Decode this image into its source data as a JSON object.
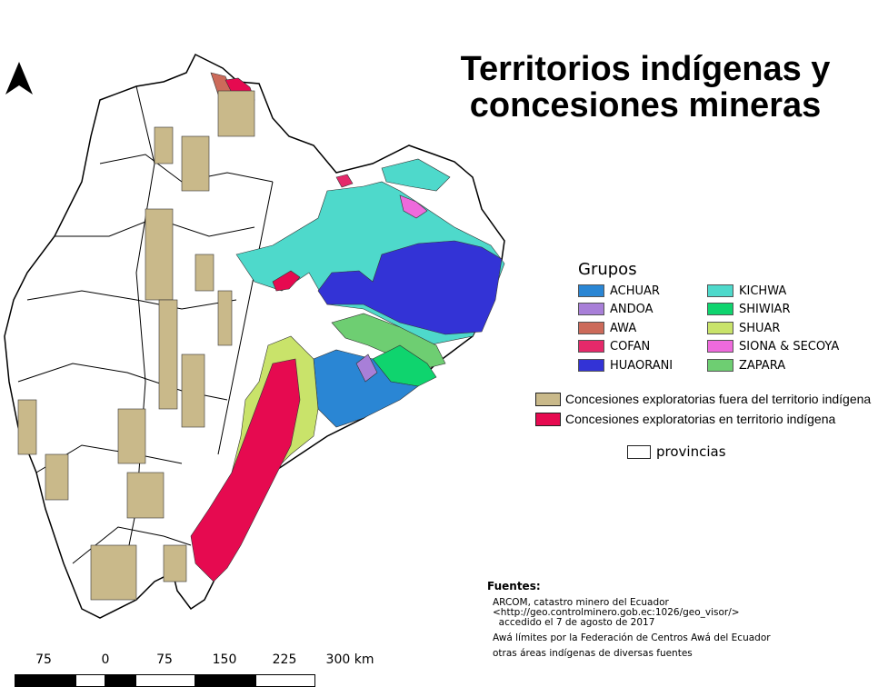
{
  "title_line1": "Territorios indígenas y",
  "title_line2": "concesiones mineras",
  "legend": {
    "heading": "Grupos",
    "groups": [
      {
        "label": "ACHUAR",
        "color": "#2a86d4"
      },
      {
        "label": "ANDOA",
        "color": "#a87fd8"
      },
      {
        "label": "AWA",
        "color": "#cc6a5a"
      },
      {
        "label": "COFAN",
        "color": "#e5296a"
      },
      {
        "label": "HUAORANI",
        "color": "#3333d6"
      },
      {
        "label": "KICHWA",
        "color": "#4ed9cb"
      },
      {
        "label": "SHIWIAR",
        "color": "#0fd46e"
      },
      {
        "label": "SHUAR",
        "color": "#c9e36a"
      },
      {
        "label": "SIONA & SECOYA",
        "color": "#ee6adc"
      },
      {
        "label": "ZAPARA",
        "color": "#6ece72"
      }
    ],
    "concessions_outside": {
      "label": "Concesiones exploratorias fuera del territorio indígena",
      "color": "#c9b98a"
    },
    "concessions_inside": {
      "label": "Concesiones exploratorias en territorio indígena",
      "color": "#e60a50"
    },
    "provinces": {
      "label": "provincias"
    }
  },
  "sources": {
    "heading": "Fuentes:",
    "line1": "ARCOM, catastro minero del Ecuador",
    "line2": "<http://geo.controlminero.gob.ec:1026/geo_visor/>",
    "line3": "  accedido el 7 de agosto de 2017",
    "line4": "Awá límites por la Federación de Centros Awá del Ecuador",
    "line5": "otras áreas indígenas de diversas fuentes"
  },
  "scale": {
    "labels": [
      "75",
      "0",
      "75",
      "150",
      "225",
      "300 km"
    ]
  },
  "north_arrow_icon": "north-arrow-icon"
}
